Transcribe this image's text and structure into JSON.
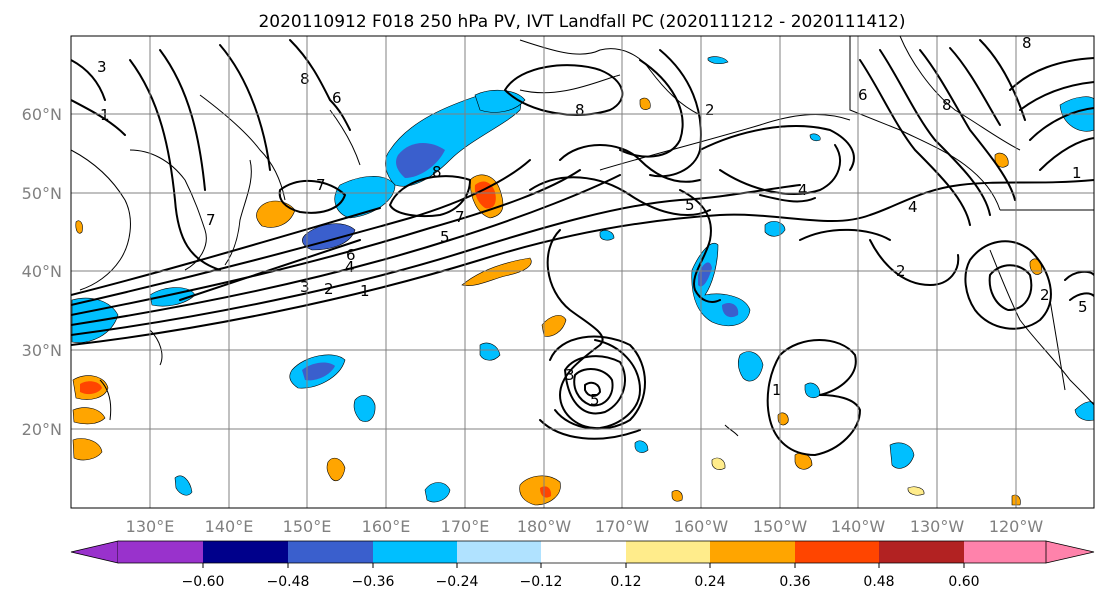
{
  "title": "2020110912 F018 250 hPa PV, IVT Landfall PC (2020111212 - 2020111412)",
  "lat_labels": [
    "60°N",
    "50°N",
    "40°N",
    "30°N",
    "20°N"
  ],
  "lon_labels": [
    "130°E",
    "140°E",
    "150°E",
    "160°E",
    "170°E",
    "180°W",
    "170°W",
    "160°W",
    "150°W",
    "140°W",
    "130°W",
    "120°W"
  ],
  "contour_labels": [
    "3",
    "1",
    "8",
    "6",
    "7",
    "8",
    "2",
    "8",
    "6",
    "8",
    "8",
    "7",
    "6",
    "5",
    "4",
    "3",
    "2",
    "1",
    "7",
    "5",
    "4",
    "3",
    "5",
    "1",
    "4",
    "2",
    "1",
    "5",
    "2"
  ],
  "colorbar": {
    "tick_labels": [
      "−0.60",
      "−0.48",
      "−0.36",
      "−0.24",
      "−0.12",
      "0.12",
      "0.24",
      "0.36",
      "0.48",
      "0.60"
    ],
    "colors": [
      "#9932cc",
      "#00008b",
      "#3a5fcd",
      "#00bfff",
      "#b0e2ff",
      "#ffffff",
      "#ffec8b",
      "#ffa500",
      "#ff4500",
      "#b22222",
      "#ff82ab"
    ]
  }
}
